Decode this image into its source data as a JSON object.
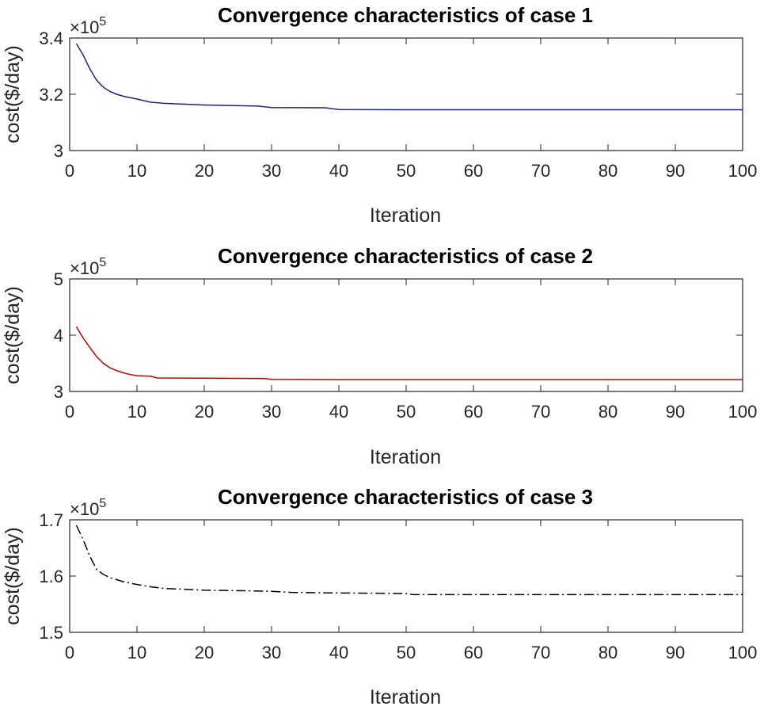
{
  "chart_data": [
    {
      "type": "line",
      "title": "Convergence characteristics of case 1",
      "xlabel": "Iteration",
      "ylabel": "cost($/day)",
      "y_multiplier": "×10",
      "y_multiplier_exponent": "5",
      "xlim": [
        0,
        100
      ],
      "ylim": [
        3.0,
        3.4
      ],
      "xticks": [
        0,
        10,
        20,
        30,
        40,
        50,
        60,
        70,
        80,
        90,
        100
      ],
      "xtick_labels": [
        "0",
        "10",
        "20",
        "30",
        "40",
        "50",
        "60",
        "70",
        "80",
        "90",
        "100"
      ],
      "yticks": [
        3.0,
        3.2,
        3.4
      ],
      "ytick_labels": [
        "3",
        "3.2",
        "3.4"
      ],
      "grid": false,
      "series": [
        {
          "color": "#1f1f8f",
          "line_style": "solid",
          "x": [
            1,
            2,
            3,
            4,
            5,
            6,
            7,
            8,
            10,
            12,
            14,
            20,
            28,
            30,
            38,
            40,
            50,
            60,
            70,
            80,
            90,
            100
          ],
          "y": [
            3.38,
            3.34,
            3.29,
            3.25,
            3.225,
            3.21,
            3.2,
            3.193,
            3.183,
            3.172,
            3.168,
            3.162,
            3.158,
            3.153,
            3.152,
            3.146,
            3.145,
            3.145,
            3.145,
            3.145,
            3.145,
            3.145
          ]
        }
      ]
    },
    {
      "type": "line",
      "title": "Convergence characteristics of case 2",
      "xlabel": "Iteration",
      "ylabel": "cost($/day)",
      "y_multiplier": "×10",
      "y_multiplier_exponent": "5",
      "xlim": [
        0,
        100
      ],
      "ylim": [
        3,
        5
      ],
      "xticks": [
        0,
        10,
        20,
        30,
        40,
        50,
        60,
        70,
        80,
        90,
        100
      ],
      "xtick_labels": [
        "0",
        "10",
        "20",
        "30",
        "40",
        "50",
        "60",
        "70",
        "80",
        "90",
        "100"
      ],
      "yticks": [
        3,
        4,
        5
      ],
      "ytick_labels": [
        "3",
        "4",
        "5"
      ],
      "grid": false,
      "series": [
        {
          "color": "#c00000",
          "line_style": "solid",
          "x": [
            1,
            2,
            3,
            4,
            5,
            6,
            7,
            8,
            9,
            10,
            12,
            13,
            20,
            29,
            30,
            40,
            50,
            60,
            70,
            80,
            90,
            100
          ],
          "y": [
            4.15,
            3.95,
            3.78,
            3.62,
            3.5,
            3.42,
            3.37,
            3.33,
            3.3,
            3.28,
            3.27,
            3.24,
            3.235,
            3.23,
            3.215,
            3.21,
            3.21,
            3.21,
            3.21,
            3.21,
            3.21,
            3.21
          ]
        }
      ]
    },
    {
      "type": "line",
      "title": "Convergence characteristics of case 3",
      "xlabel": "Iteration",
      "ylabel": "cost($/day)",
      "y_multiplier": "×10",
      "y_multiplier_exponent": "5",
      "xlim": [
        0,
        100
      ],
      "ylim": [
        1.5,
        1.7
      ],
      "xticks": [
        0,
        10,
        20,
        30,
        40,
        50,
        60,
        70,
        80,
        90,
        100
      ],
      "xtick_labels": [
        "0",
        "10",
        "20",
        "30",
        "40",
        "50",
        "60",
        "70",
        "80",
        "90",
        "100"
      ],
      "yticks": [
        1.5,
        1.6,
        1.7
      ],
      "ytick_labels": [
        "1.5",
        "1.6",
        "1.7"
      ],
      "grid": false,
      "series": [
        {
          "color": "#000000",
          "line_style": "dashdot",
          "x": [
            1,
            2,
            3,
            4,
            5,
            6,
            8,
            10,
            12,
            14,
            18,
            20,
            26,
            30,
            33,
            40,
            50,
            51,
            60,
            70,
            80,
            90,
            100
          ],
          "y": [
            1.69,
            1.665,
            1.635,
            1.612,
            1.603,
            1.597,
            1.59,
            1.585,
            1.581,
            1.578,
            1.576,
            1.575,
            1.574,
            1.573,
            1.571,
            1.57,
            1.569,
            1.567,
            1.567,
            1.567,
            1.567,
            1.567,
            1.567
          ]
        }
      ]
    }
  ]
}
